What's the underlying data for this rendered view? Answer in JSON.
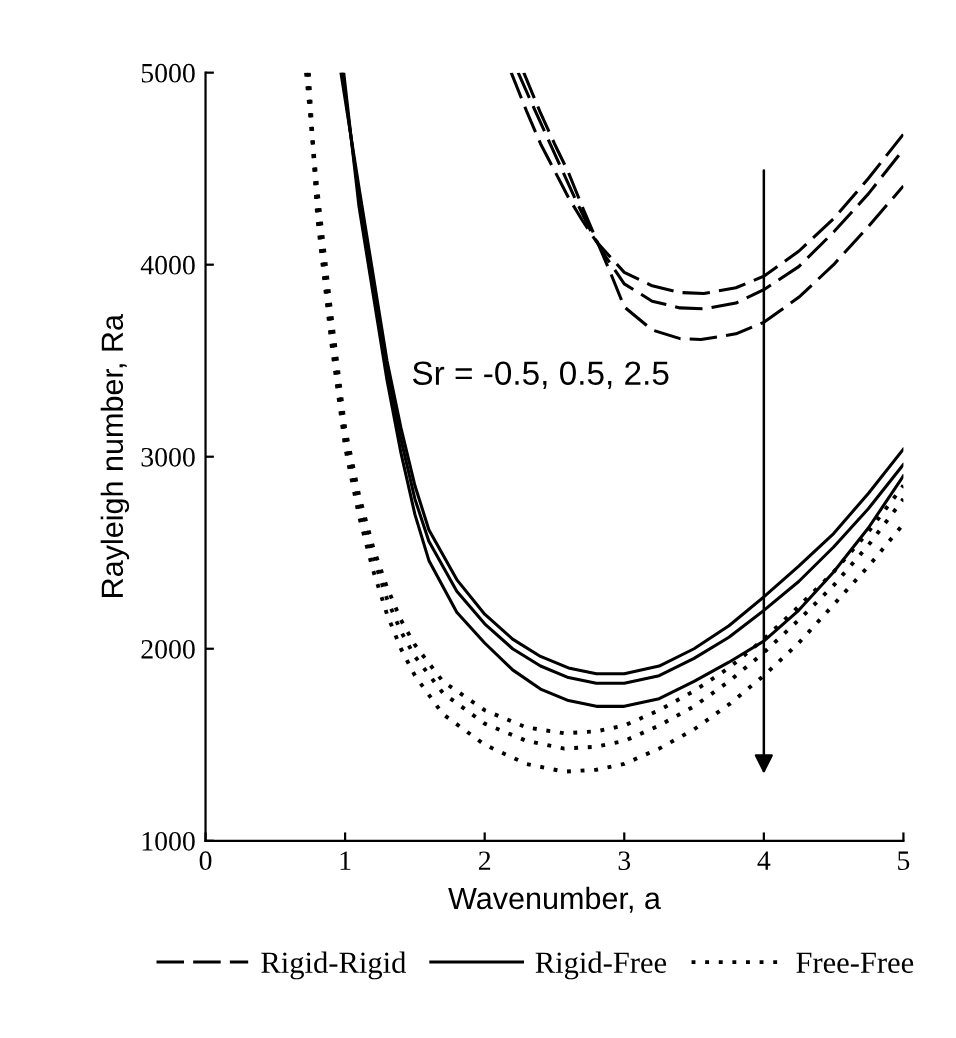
{
  "chart_data": {
    "type": "line",
    "xlabel": "Wavenumber, a",
    "ylabel": "Rayleigh number, Ra",
    "xlim": [
      0,
      5
    ],
    "ylim": [
      1000,
      5000
    ],
    "xticks": [
      0,
      1,
      2,
      3,
      4,
      5
    ],
    "yticks": [
      1000,
      2000,
      3000,
      4000,
      5000
    ],
    "grid": false,
    "legend": "bottom",
    "marker": "none",
    "annotations": [
      "Sr = -0.5, 0.5, 2.5"
    ],
    "series": [
      {
        "name": "Rigid-Rigid",
        "color": "#000000",
        "line_style": "dashed",
        "x": [
          2.19,
          2.3,
          2.4,
          2.5,
          2.6,
          2.7,
          2.8,
          2.9,
          3.0,
          3.2,
          3.4,
          3.57,
          3.8,
          4.0,
          4.25,
          4.5,
          4.75,
          5.0
        ],
        "values": [
          5000,
          4800,
          4630,
          4490,
          4350,
          4230,
          4120,
          4040,
          3960,
          3890,
          3855,
          3850,
          3880,
          3940,
          4070,
          4240,
          4450,
          4680
        ]
      },
      {
        "color": "#000000",
        "line_style": "dashed",
        "x": [
          2.24,
          2.35,
          2.45,
          2.55,
          2.65,
          2.75,
          2.85,
          3.0,
          3.2,
          3.4,
          3.57,
          3.8,
          4.0,
          4.25,
          4.5,
          4.75,
          5.0
        ],
        "values": [
          5000,
          4820,
          4660,
          4500,
          4340,
          4190,
          4060,
          3900,
          3810,
          3775,
          3770,
          3800,
          3870,
          3990,
          4170,
          4370,
          4600
        ]
      },
      {
        "color": "#000000",
        "line_style": "dashed",
        "x": [
          2.28,
          2.4,
          2.5,
          2.6,
          2.7,
          2.8,
          2.9,
          3.0,
          3.2,
          3.4,
          3.55,
          3.8,
          4.0,
          4.25,
          4.5,
          4.75,
          5.0
        ],
        "values": [
          5000,
          4790,
          4630,
          4480,
          4300,
          4130,
          3960,
          3780,
          3660,
          3615,
          3610,
          3640,
          3700,
          3830,
          4000,
          4200,
          4410
        ]
      },
      {
        "name": "Rigid-Free",
        "color": "#000000",
        "line_style": "solid",
        "x": [
          0.97,
          1.1,
          1.2,
          1.3,
          1.4,
          1.5,
          1.6,
          1.8,
          2.0,
          2.2,
          2.4,
          2.6,
          2.8,
          3.0,
          3.25,
          3.5,
          3.75,
          4.0,
          4.25,
          4.5,
          4.75,
          5.0
        ],
        "values": [
          5000,
          4400,
          3950,
          3500,
          3150,
          2850,
          2620,
          2360,
          2180,
          2050,
          1960,
          1900,
          1870,
          1870,
          1910,
          2000,
          2120,
          2270,
          2430,
          2600,
          2810,
          3040
        ]
      },
      {
        "color": "#000000",
        "line_style": "solid",
        "x": [
          0.98,
          1.1,
          1.2,
          1.3,
          1.4,
          1.5,
          1.6,
          1.8,
          2.0,
          2.2,
          2.4,
          2.6,
          2.8,
          3.0,
          3.25,
          3.5,
          3.75,
          4.0,
          4.25,
          4.5,
          4.75,
          5.0
        ],
        "values": [
          5000,
          4350,
          3900,
          3450,
          3090,
          2780,
          2560,
          2300,
          2130,
          2000,
          1910,
          1850,
          1820,
          1820,
          1860,
          1950,
          2060,
          2200,
          2350,
          2530,
          2730,
          2960
        ]
      },
      {
        "color": "#000000",
        "line_style": "solid",
        "x": [
          0.99,
          1.1,
          1.2,
          1.3,
          1.4,
          1.5,
          1.6,
          1.8,
          2.0,
          2.2,
          2.4,
          2.6,
          2.8,
          3.0,
          3.25,
          3.5,
          3.75,
          4.0,
          4.25,
          4.5,
          4.75,
          5.0
        ],
        "values": [
          5000,
          4300,
          3850,
          3400,
          3020,
          2700,
          2460,
          2190,
          2030,
          1890,
          1790,
          1730,
          1700,
          1700,
          1740,
          1830,
          1930,
          2040,
          2200,
          2400,
          2630,
          2900
        ]
      },
      {
        "name": "Free-Free",
        "color": "#000000",
        "line_style": "dotted",
        "x": [
          0.72,
          0.8,
          0.9,
          1.0,
          1.1,
          1.2,
          1.3,
          1.4,
          1.5,
          1.7,
          2.0,
          2.3,
          2.57,
          2.8,
          3.0,
          3.25,
          3.5,
          3.75,
          4.0,
          4.25,
          4.5,
          4.75,
          5.0
        ],
        "values": [
          5000,
          4400,
          3750,
          3150,
          2800,
          2530,
          2320,
          2150,
          2020,
          1830,
          1680,
          1590,
          1560,
          1570,
          1600,
          1680,
          1780,
          1900,
          2050,
          2220,
          2400,
          2610,
          2850
        ]
      },
      {
        "color": "#000000",
        "line_style": "dotted",
        "x": [
          0.73,
          0.8,
          0.9,
          1.0,
          1.1,
          1.2,
          1.3,
          1.4,
          1.5,
          1.7,
          2.0,
          2.3,
          2.57,
          2.8,
          3.0,
          3.25,
          3.5,
          3.75,
          4.0,
          4.25,
          4.5,
          4.75,
          5.0
        ],
        "values": [
          5000,
          4300,
          3650,
          3100,
          2750,
          2480,
          2260,
          2090,
          1960,
          1770,
          1610,
          1520,
          1480,
          1490,
          1520,
          1600,
          1700,
          1830,
          1980,
          2150,
          2330,
          2540,
          2780
        ]
      },
      {
        "color": "#000000",
        "line_style": "dotted",
        "x": [
          0.74,
          0.8,
          0.9,
          1.0,
          1.1,
          1.2,
          1.3,
          1.4,
          1.5,
          1.7,
          2.0,
          2.3,
          2.57,
          2.8,
          3.0,
          3.25,
          3.5,
          3.75,
          4.0,
          4.25,
          4.5,
          4.75,
          5.0
        ],
        "values": [
          5000,
          4250,
          3600,
          3050,
          2690,
          2410,
          2180,
          2000,
          1860,
          1660,
          1500,
          1400,
          1360,
          1370,
          1400,
          1480,
          1580,
          1710,
          1860,
          2030,
          2230,
          2430,
          2650
        ]
      }
    ]
  }
}
